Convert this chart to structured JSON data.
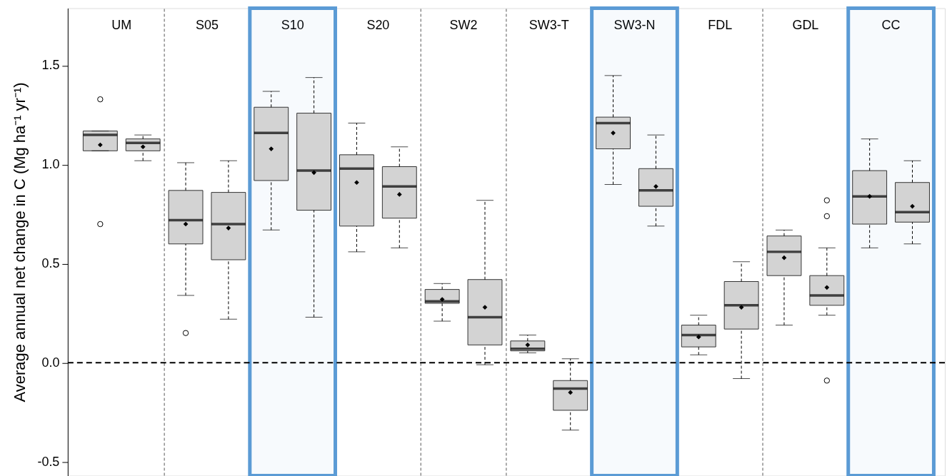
{
  "chart_data": {
    "type": "box",
    "ylabel": "Average annual net change in C (Mg ha⁻¹ yr⁻¹)",
    "categories": [
      "UM",
      "S05",
      "S10",
      "S20",
      "SW2",
      "SW3-T",
      "SW3-N",
      "FDL",
      "GDL",
      "CC"
    ],
    "series": [
      {
        "color": "#d3d3d3",
        "boxes": [
          {
            "low": 1.07,
            "q1": 1.07,
            "median": 1.15,
            "q3": 1.17,
            "high": 1.17,
            "mean": 1.1,
            "outliers": [
              1.33,
              0.7
            ]
          },
          {
            "low": 0.34,
            "q1": 0.6,
            "median": 0.72,
            "q3": 0.87,
            "high": 1.01,
            "mean": 0.7,
            "outliers": [
              0.15
            ]
          },
          {
            "low": 0.67,
            "q1": 0.92,
            "median": 1.16,
            "q3": 1.29,
            "high": 1.37,
            "mean": 1.08
          },
          {
            "low": 0.56,
            "q1": 0.69,
            "median": 0.98,
            "q3": 1.05,
            "high": 1.21,
            "mean": 0.91
          },
          {
            "low": 0.21,
            "q1": 0.3,
            "median": 0.31,
            "q3": 0.37,
            "high": 0.4,
            "mean": 0.32
          },
          {
            "low": 0.05,
            "q1": 0.06,
            "median": 0.07,
            "q3": 0.11,
            "high": 0.14,
            "mean": 0.09
          },
          {
            "low": 0.9,
            "q1": 1.08,
            "median": 1.21,
            "q3": 1.24,
            "high": 1.45,
            "mean": 1.16
          },
          {
            "low": 0.04,
            "q1": 0.08,
            "median": 0.14,
            "q3": 0.19,
            "high": 0.24,
            "mean": 0.13
          },
          {
            "low": 0.19,
            "q1": 0.44,
            "median": 0.56,
            "q3": 0.64,
            "high": 0.67,
            "mean": 0.53
          },
          {
            "low": 0.58,
            "q1": 0.7,
            "median": 0.84,
            "q3": 0.97,
            "high": 1.13,
            "mean": 0.84
          }
        ]
      },
      {
        "color": "#d3d3d3",
        "boxes": [
          {
            "low": 1.02,
            "q1": 1.07,
            "median": 1.11,
            "q3": 1.13,
            "high": 1.15,
            "mean": 1.09
          },
          {
            "low": 0.22,
            "q1": 0.52,
            "median": 0.7,
            "q3": 0.86,
            "high": 1.02,
            "mean": 0.68
          },
          {
            "low": 0.23,
            "q1": 0.77,
            "median": 0.97,
            "q3": 1.26,
            "high": 1.44,
            "mean": 0.96
          },
          {
            "low": 0.58,
            "q1": 0.73,
            "median": 0.89,
            "q3": 0.99,
            "high": 1.09,
            "mean": 0.85
          },
          {
            "low": -0.01,
            "q1": 0.09,
            "median": 0.23,
            "q3": 0.42,
            "high": 0.82,
            "mean": 0.28
          },
          {
            "low": -0.34,
            "q1": -0.24,
            "median": -0.13,
            "q3": -0.09,
            "high": 0.02,
            "mean": -0.15
          },
          {
            "low": 0.69,
            "q1": 0.79,
            "median": 0.87,
            "q3": 0.98,
            "high": 1.15,
            "mean": 0.89
          },
          {
            "low": -0.08,
            "q1": 0.17,
            "median": 0.29,
            "q3": 0.41,
            "high": 0.51,
            "mean": 0.28
          },
          {
            "low": 0.24,
            "q1": 0.29,
            "median": 0.34,
            "q3": 0.44,
            "high": 0.58,
            "mean": 0.38,
            "outliers": [
              0.82,
              0.74,
              -0.09
            ]
          },
          {
            "low": 0.6,
            "q1": 0.71,
            "median": 0.76,
            "q3": 0.91,
            "high": 1.02,
            "mean": 0.79
          }
        ]
      }
    ],
    "ylim": [
      -0.57,
      1.79
    ],
    "yticks": [
      -0.5,
      {
        "value": 0,
        "label": "0.0"
      },
      0.5,
      {
        "value": 1,
        "label": "1.0"
      },
      1.5
    ],
    "ref_lines": [
      {
        "axis": "y",
        "value": 0,
        "line_style": "dashed",
        "color": "#000000"
      }
    ],
    "bands": [
      {
        "axis": "x",
        "from": "S10",
        "to": "S10",
        "color": "#5b9bd5"
      },
      {
        "axis": "x",
        "from": "SW3-N",
        "to": "SW3-N",
        "color": "#5b9bd5"
      },
      {
        "axis": "x",
        "from": "CC",
        "to": "CC",
        "color": "#5b9bd5"
      }
    ],
    "grid": "x",
    "marker": "diamond"
  }
}
